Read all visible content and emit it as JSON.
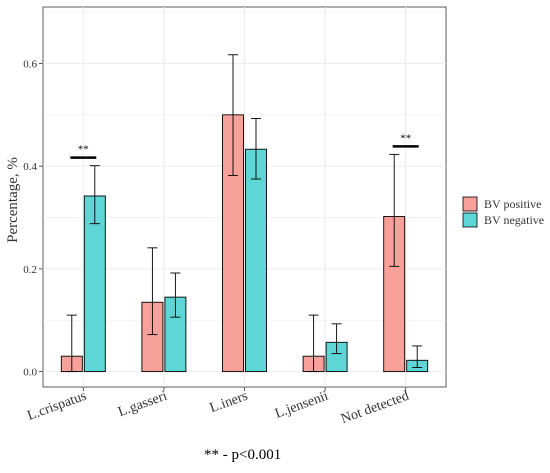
{
  "chart_data": {
    "type": "bar",
    "categories": [
      "L.crispatus",
      "L.gasseri",
      "L.iners",
      "L.jensenii",
      "Not detected"
    ],
    "series": [
      {
        "name": "BV positive",
        "color": "#F8A19A",
        "values": [
          0.03,
          0.135,
          0.5,
          0.03,
          0.302
        ],
        "error_low": [
          0.0,
          0.072,
          0.382,
          0.0,
          0.205
        ],
        "error_high": [
          0.11,
          0.241,
          0.617,
          0.11,
          0.423
        ]
      },
      {
        "name": "BV negative",
        "color": "#5ED6D6",
        "values": [
          0.342,
          0.145,
          0.433,
          0.057,
          0.022
        ],
        "error_low": [
          0.288,
          0.106,
          0.375,
          0.035,
          0.008
        ],
        "error_high": [
          0.401,
          0.192,
          0.493,
          0.093,
          0.05
        ]
      }
    ],
    "significance": [
      {
        "category": "L.crispatus",
        "label": "**"
      },
      {
        "category": "Not detected",
        "label": "**"
      }
    ],
    "ylabel": "Percentage, %",
    "xlabel": "",
    "ylim": [
      -0.03,
      0.71
    ],
    "yticks": [
      0.0,
      0.2,
      0.4,
      0.6
    ],
    "ytick_labels": [
      "0.0",
      "0.2",
      "0.4",
      "0.6"
    ],
    "grid": true,
    "legend_position": "right",
    "footnote": "** - p<0.001"
  }
}
